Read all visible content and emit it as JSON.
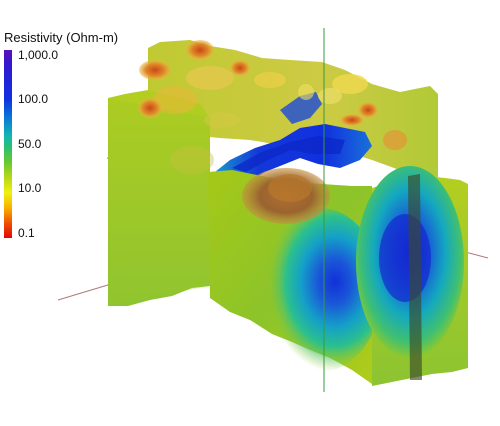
{
  "legend": {
    "title": "Resistivity (Ohm-m)",
    "ticks": [
      "1,000.0",
      "100.0",
      "50.0",
      "10.0",
      "0.1"
    ]
  },
  "palette": {
    "low": "#e00808",
    "mid_low": "#f0f010",
    "mid": "#8ccc28",
    "mid_high": "#12b8b0",
    "high": "#1030e0",
    "max": "#5a10b8",
    "body_shadow": "#9a6a30"
  }
}
